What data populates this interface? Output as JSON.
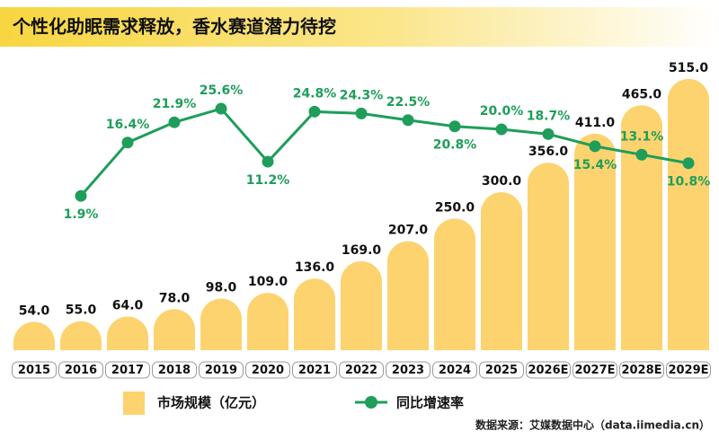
{
  "chart_data": {
    "type": "bar",
    "title": "个性化助眠需求释放，香水赛道潜力待挖",
    "categories": [
      "2015",
      "2016",
      "2017",
      "2018",
      "2019",
      "2020",
      "2021",
      "2022",
      "2023",
      "2024",
      "2025",
      "2026E",
      "2027E",
      "2028E",
      "2029E"
    ],
    "series": [
      {
        "name": "市场规模（亿元）",
        "color": "#fdd36f",
        "type": "bar",
        "values": [
          54,
          55,
          64,
          78,
          98,
          109,
          136,
          169,
          207,
          250,
          300,
          356,
          411,
          465,
          515
        ],
        "value_labels": [
          "54.0",
          "55.0",
          "64.0",
          "78.0",
          "98.0",
          "109.0",
          "136.0",
          "169.0",
          "207.0",
          "250.0",
          "300.0",
          "356.0",
          "411.0",
          "465.0",
          "515.0"
        ]
      },
      {
        "name": "同比增速率",
        "color": "#1e9e5a",
        "type": "line",
        "axis": "y2",
        "values": [
          null,
          1.9,
          16.4,
          21.9,
          25.6,
          11.2,
          24.8,
          24.3,
          22.5,
          20.8,
          20.0,
          18.7,
          15.4,
          13.1,
          10.8
        ],
        "value_labels": [
          null,
          "1.9%",
          "16.4%",
          "21.9%",
          "25.6%",
          "11.2%",
          "24.8%",
          "24.3%",
          "22.5%",
          "20.8%",
          "20.0%",
          "18.7%",
          "15.4%",
          "13.1%",
          "10.8%"
        ]
      }
    ],
    "ylim": [
      0,
      520
    ],
    "y2lim": [
      0,
      30
    ],
    "source": "数据来源：艾媒数据中心（data.iimedia.cn）"
  }
}
